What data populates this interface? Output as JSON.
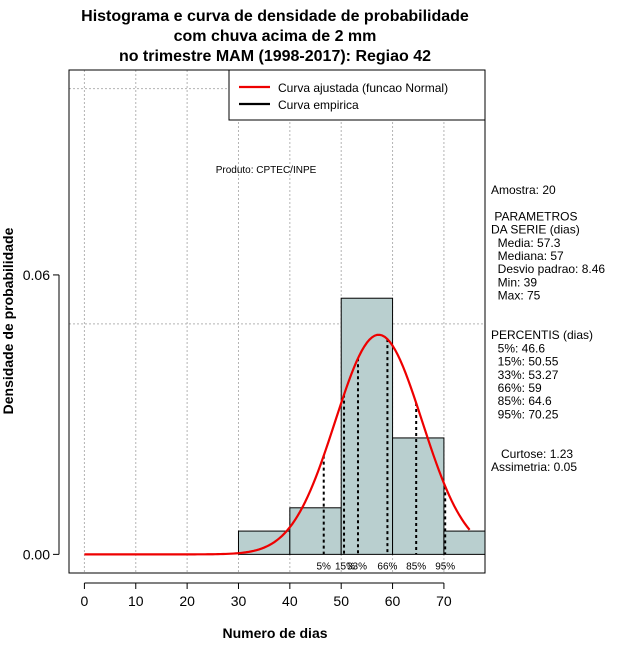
{
  "chart_data": {
    "type": "bar",
    "title": [
      "Histograma e curva de densidade de probabilidade",
      "com chuva acima de 2 mm",
      "no trimestre MAM (1998-2017): Regiao 42"
    ],
    "xlabel": "Numero de dias",
    "ylabel": "Densidade de probabilidade",
    "xlim": [
      -3,
      78
    ],
    "ylim": [
      -0.004,
      0.104
    ],
    "x_ticks": [
      0,
      10,
      20,
      30,
      40,
      50,
      60,
      70
    ],
    "y_ticks": [
      0.0,
      0.06
    ],
    "y_tick_labels": [
      "0.00",
      "0.06"
    ],
    "grid_x": [
      0,
      10,
      20,
      30,
      40,
      50,
      60,
      70
    ],
    "grid_y": [
      0.0495,
      0.1
    ],
    "bins": [
      {
        "start": 30,
        "end": 40,
        "density": 0.005
      },
      {
        "start": 40,
        "end": 50,
        "density": 0.01
      },
      {
        "start": 50,
        "end": 60,
        "density": 0.055
      },
      {
        "start": 60,
        "end": 70,
        "density": 0.025
      },
      {
        "start": 70,
        "end": 80,
        "density": 0.005
      }
    ],
    "fitted_normal": {
      "mean": 57.3,
      "sd": 8.46,
      "x_from": 0,
      "x_to": 75
    },
    "legend": [
      {
        "label": "Curva ajustada (funcao Normal)",
        "color": "#ee0000"
      },
      {
        "label": "Curva empirica",
        "color": "#000000"
      }
    ],
    "annotation": "Produto: CPTEC/INPE",
    "percentile_lines": [
      {
        "label": "5%",
        "x": 46.6
      },
      {
        "label": "15%",
        "x": 50.55
      },
      {
        "label": "33%",
        "x": 53.27
      },
      {
        "label": "66%",
        "x": 59
      },
      {
        "label": "85%",
        "x": 64.6
      },
      {
        "label": "95%",
        "x": 70.25
      }
    ],
    "side_panel": [
      "Amostra: 20",
      "",
      " PARAMETROS",
      "DA SERIE (dias)",
      "  Media: 57.3",
      "  Mediana: 57",
      "  Desvio padrao: 8.46",
      "  Min: 39",
      "  Max: 75",
      "",
      "",
      "PERCENTIS (dias)",
      "  5%: 46.6",
      "  15%: 50.55",
      "  33%: 53.27",
      "  66%: 59",
      "  85%: 64.6",
      "  95%: 70.25",
      "",
      "",
      "   Curtose: 1.23",
      "Assimetria: 0.05"
    ]
  },
  "colors": {
    "bar_fill": "#b9cfcf",
    "curve": "#ee0000",
    "grid": "#b4b4b4"
  }
}
